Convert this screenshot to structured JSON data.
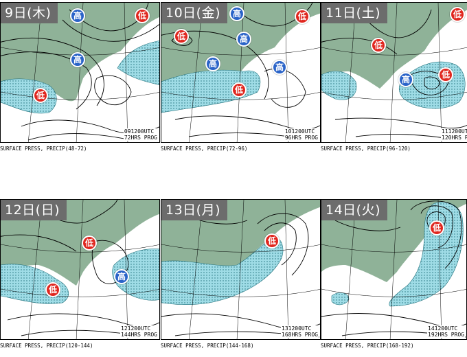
{
  "colors": {
    "land": "#8fb298",
    "precip_fill": "#9fdce6",
    "low_marker": "#e0271f",
    "high_marker": "#2a63c8",
    "date_tab": "#6c6c6c"
  },
  "panels": [
    {
      "date_label": "9日(木)",
      "stamp_line1": "091200UTC",
      "stamp_line2": "72HRS PROG",
      "caption_main": "SURFACE PRESS, PRECIP",
      "caption_range": "(48-72)",
      "markers": [
        {
          "type": "high",
          "label": "高"
        },
        {
          "type": "high",
          "label": "高"
        },
        {
          "type": "low",
          "label": "低"
        },
        {
          "type": "low",
          "label": "低"
        }
      ]
    },
    {
      "date_label": "10日(金)",
      "stamp_line1": "101200UTC",
      "stamp_line2": "96HRS PROG",
      "caption_main": "SURFACE PRESS, PRECIP",
      "caption_range": "(72-96)",
      "markers": [
        {
          "type": "high",
          "label": "高"
        },
        {
          "type": "high",
          "label": "高"
        },
        {
          "type": "low",
          "label": "低"
        },
        {
          "type": "high",
          "label": "高"
        },
        {
          "type": "high",
          "label": "高"
        },
        {
          "type": "low",
          "label": "低"
        },
        {
          "type": "low",
          "label": "低"
        }
      ]
    },
    {
      "date_label": "11日(土)",
      "stamp_line1": "111200UTC",
      "stamp_line2": "120HRS PROG",
      "caption_main": "SURFACE PRESS, PRECIP",
      "caption_range": "(96-120)",
      "markers": [
        {
          "type": "low",
          "label": "低"
        },
        {
          "type": "low",
          "label": "低"
        },
        {
          "type": "high",
          "label": "高"
        },
        {
          "type": "low",
          "label": "低"
        }
      ]
    },
    {
      "date_label": "12日(日)",
      "stamp_line1": "121200UTC",
      "stamp_line2": "144HRS PROG",
      "caption_main": "SURFACE PRESS, PRECIP",
      "caption_range": "(120-144)",
      "markers": [
        {
          "type": "low",
          "label": "低"
        },
        {
          "type": "high",
          "label": "高"
        },
        {
          "type": "low",
          "label": "低"
        }
      ]
    },
    {
      "date_label": "13日(月)",
      "stamp_line1": "131200UTC",
      "stamp_line2": "168HRS PROG",
      "caption_main": "SURFACE PRESS, PRECIP",
      "caption_range": "(144-168)",
      "markers": [
        {
          "type": "low",
          "label": "低"
        }
      ]
    },
    {
      "date_label": "14日(火)",
      "stamp_line1": "141200UTC",
      "stamp_line2": "192HRS PROG",
      "caption_main": "SURFACE PRESS, PRECIP",
      "caption_range": "(168-192)",
      "markers": [
        {
          "type": "low",
          "label": "低"
        }
      ]
    }
  ]
}
